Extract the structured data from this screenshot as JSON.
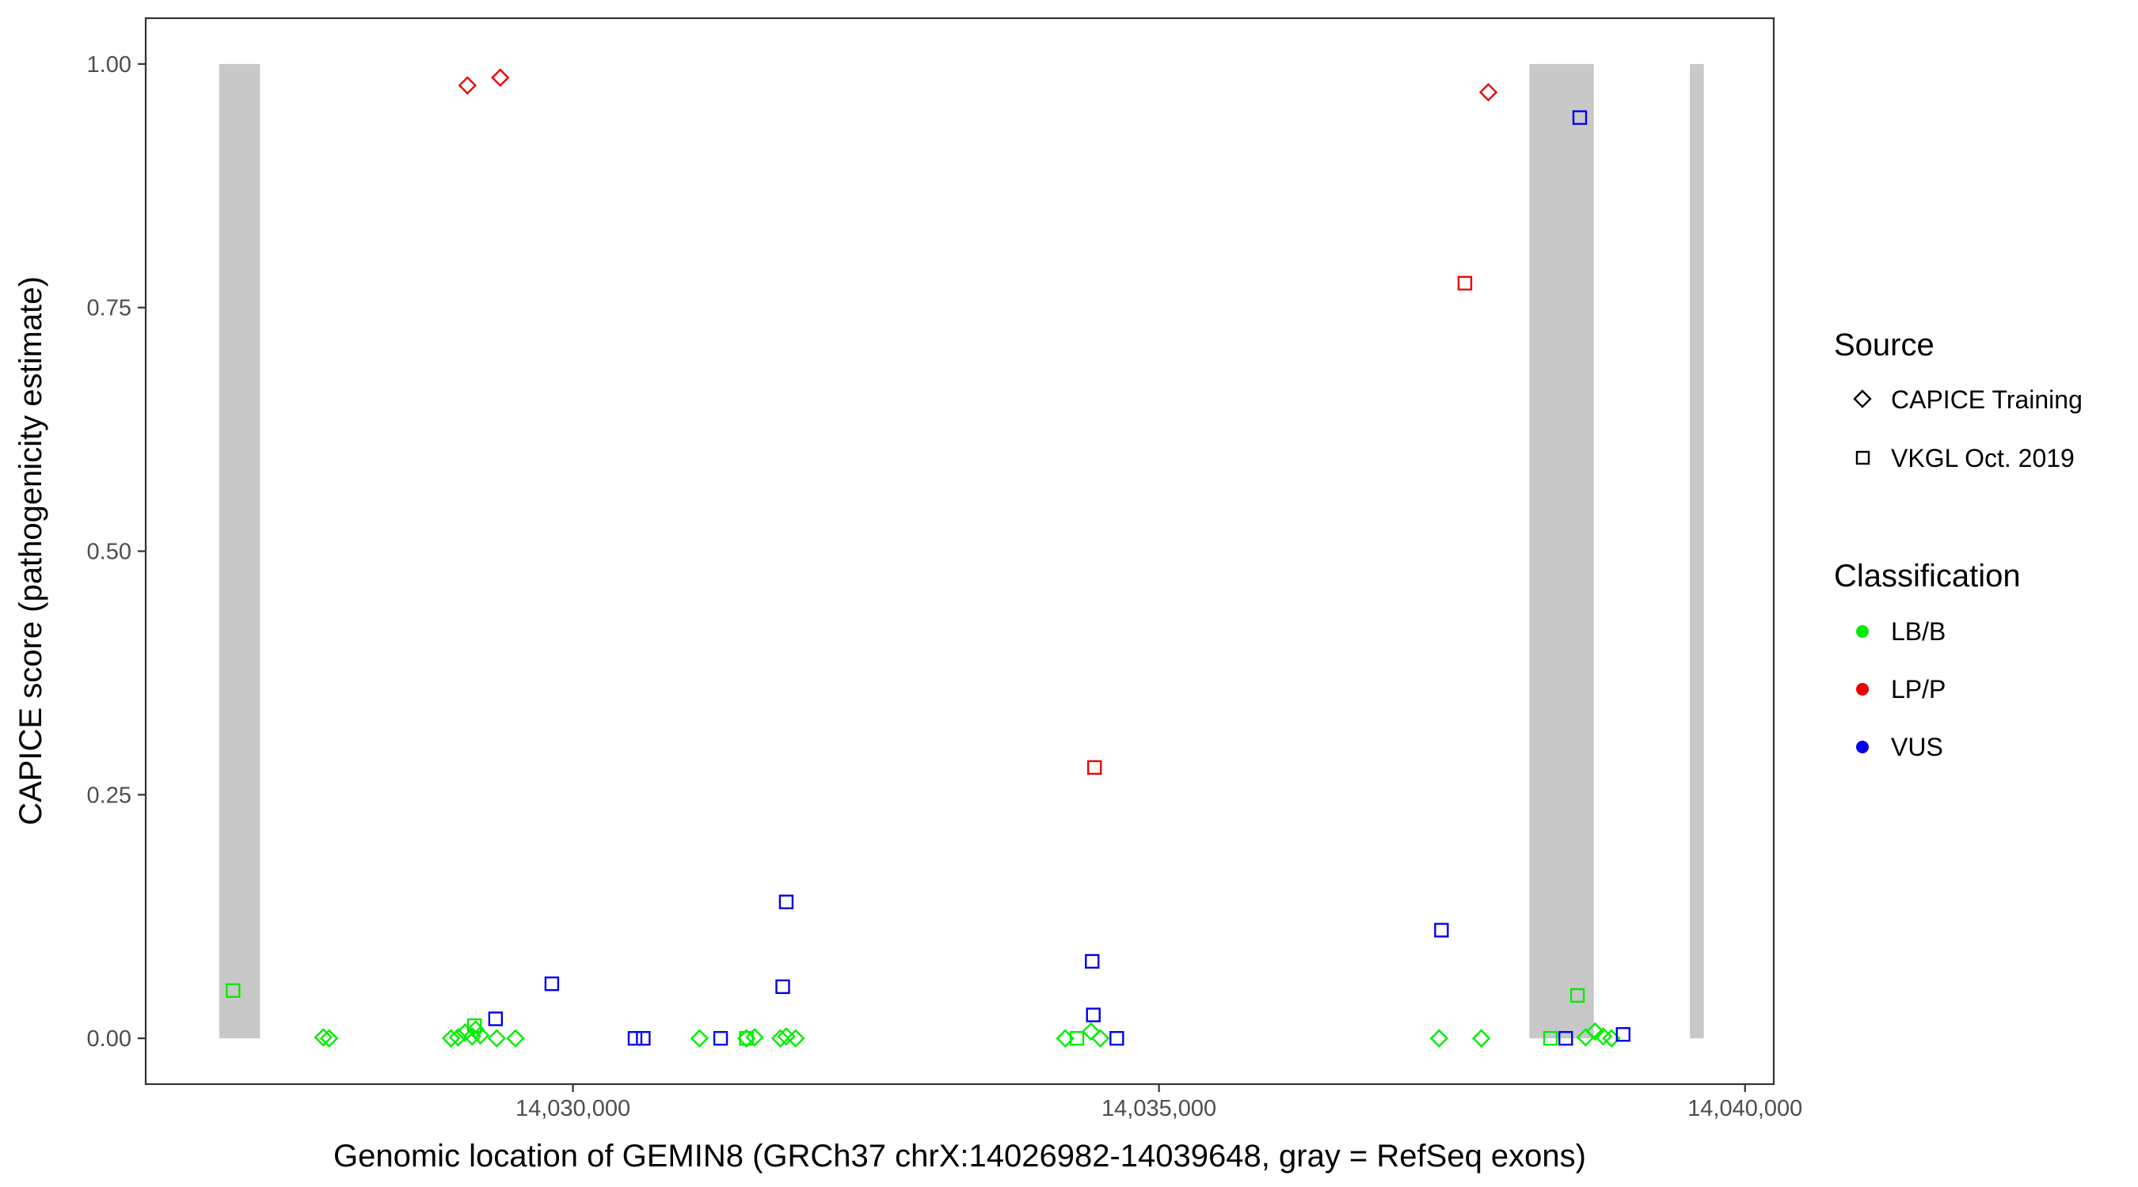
{
  "chart_data": {
    "type": "scatter",
    "title": "",
    "xlabel": "Genomic location of GEMIN8 (GRCh37 chrX:14026982-14039648, gray = RefSeq exons)",
    "ylabel": "CAPICE score (pathogenicity estimate)",
    "xlim": [
      14026355,
      14040245
    ],
    "ylim": [
      -0.047,
      1.047
    ],
    "x_ticks": [
      14030000,
      14035000,
      14040000
    ],
    "x_tick_labels": [
      "14,030,000",
      "14,035,000",
      "14,040,000"
    ],
    "y_ticks": [
      0,
      0.25,
      0.5,
      0.75,
      1
    ],
    "y_tick_labels": [
      "0.00",
      "0.25",
      "0.50",
      "0.75",
      "1.00"
    ],
    "grid": false,
    "exons": [
      {
        "start": 14026982,
        "end": 14027330
      },
      {
        "start": 14038160,
        "end": 14038710
      },
      {
        "start": 14039530,
        "end": 14039648
      }
    ],
    "exon_color": "#c8c8c8",
    "legend_position": "right",
    "legend": {
      "source_title": "Source",
      "source_entries": [
        {
          "label": "CAPICE Training",
          "shape": "diamond"
        },
        {
          "label": "VKGL Oct. 2019",
          "shape": "square"
        }
      ],
      "class_title": "Classification",
      "class_entries": [
        {
          "label": "LB/B",
          "color": "#00ee00"
        },
        {
          "label": "LP/P",
          "color": "#ee0000"
        },
        {
          "label": "VUS",
          "color": "#0000ee"
        }
      ]
    },
    "series": [
      {
        "source": "CAPICE Training",
        "classification": "LB/B",
        "shape": "diamond",
        "color": "#00ee00",
        "points": [
          {
            "x": 14027870,
            "y": 0.001
          },
          {
            "x": 14027920,
            "y": 0.0
          },
          {
            "x": 14028960,
            "y": 0.0
          },
          {
            "x": 14029020,
            "y": 0.001
          },
          {
            "x": 14029080,
            "y": 0.006
          },
          {
            "x": 14029140,
            "y": 0.002
          },
          {
            "x": 14029170,
            "y": 0.009
          },
          {
            "x": 14029210,
            "y": 0.003
          },
          {
            "x": 14029350,
            "y": 0.0
          },
          {
            "x": 14029510,
            "y": 0.0
          },
          {
            "x": 14031080,
            "y": 0.0
          },
          {
            "x": 14031480,
            "y": 0.0
          },
          {
            "x": 14031550,
            "y": 0.001
          },
          {
            "x": 14031770,
            "y": 0.0
          },
          {
            "x": 14031820,
            "y": 0.002
          },
          {
            "x": 14031900,
            "y": 0.0
          },
          {
            "x": 14034200,
            "y": 0.0
          },
          {
            "x": 14034420,
            "y": 0.007
          },
          {
            "x": 14034500,
            "y": 0.0
          },
          {
            "x": 14037390,
            "y": 0.0
          },
          {
            "x": 14037750,
            "y": 0.0
          },
          {
            "x": 14038640,
            "y": 0.001
          },
          {
            "x": 14038720,
            "y": 0.007
          },
          {
            "x": 14038790,
            "y": 0.002
          },
          {
            "x": 14038860,
            "y": 0.0
          }
        ]
      },
      {
        "source": "CAPICE Training",
        "classification": "LP/P",
        "shape": "diamond",
        "color": "#ee0000",
        "points": [
          {
            "x": 14029100,
            "y": 0.978
          },
          {
            "x": 14029380,
            "y": 0.986
          },
          {
            "x": 14037810,
            "y": 0.971
          }
        ]
      },
      {
        "source": "VKGL Oct. 2019",
        "classification": "LB/B",
        "shape": "square",
        "color": "#00ee00",
        "points": [
          {
            "x": 14027100,
            "y": 0.049
          },
          {
            "x": 14029160,
            "y": 0.013
          },
          {
            "x": 14031480,
            "y": 0.0
          },
          {
            "x": 14034300,
            "y": 0.0
          },
          {
            "x": 14038340,
            "y": 0.0
          },
          {
            "x": 14038570,
            "y": 0.044
          }
        ]
      },
      {
        "source": "VKGL Oct. 2019",
        "classification": "LP/P",
        "shape": "square",
        "color": "#ee0000",
        "points": [
          {
            "x": 14034450,
            "y": 0.278
          },
          {
            "x": 14037610,
            "y": 0.775
          }
        ]
      },
      {
        "source": "VKGL Oct. 2019",
        "classification": "VUS",
        "shape": "square",
        "color": "#0000ee",
        "points": [
          {
            "x": 14029340,
            "y": 0.02
          },
          {
            "x": 14029820,
            "y": 0.056
          },
          {
            "x": 14030530,
            "y": 0.0
          },
          {
            "x": 14030600,
            "y": 0.0
          },
          {
            "x": 14031260,
            "y": 0.0
          },
          {
            "x": 14031790,
            "y": 0.053
          },
          {
            "x": 14031820,
            "y": 0.14
          },
          {
            "x": 14034430,
            "y": 0.079
          },
          {
            "x": 14034440,
            "y": 0.024
          },
          {
            "x": 14034640,
            "y": 0.0
          },
          {
            "x": 14037410,
            "y": 0.111
          },
          {
            "x": 14038470,
            "y": 0.0
          },
          {
            "x": 14038590,
            "y": 0.945
          },
          {
            "x": 14038960,
            "y": 0.004
          }
        ]
      }
    ]
  }
}
